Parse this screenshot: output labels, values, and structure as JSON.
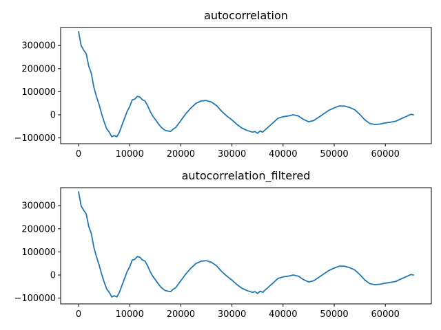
{
  "chart_data": [
    {
      "type": "line",
      "title": "autocorrelation",
      "xlabel": "",
      "ylabel": "",
      "xlim": [
        -3500,
        69000
      ],
      "ylim": [
        -125000,
        378000
      ],
      "x_ticks": [
        0,
        10000,
        20000,
        30000,
        40000,
        50000,
        60000
      ],
      "x_tick_labels": [
        "0",
        "10000",
        "20000",
        "30000",
        "40000",
        "50000",
        "60000"
      ],
      "y_ticks": [
        -100000,
        0,
        100000,
        200000,
        300000
      ],
      "y_tick_labels": [
        "−100000",
        "0",
        "100000",
        "200000",
        "300000"
      ],
      "grid": false,
      "color": "#1f77b4",
      "series": [
        {
          "x": [
            0,
            500,
            1000,
            1500,
            2000,
            2500,
            3000,
            3500,
            4000,
            4500,
            5000,
            5500,
            6000,
            6500,
            7000,
            7500,
            8000,
            8500,
            9000,
            9500,
            10000,
            10500,
            11000,
            11500,
            12000,
            12500,
            13000,
            13500,
            14000,
            14500,
            15000,
            15500,
            16000,
            16500,
            17000,
            17500,
            18000,
            18500,
            19000,
            19500,
            20000,
            21000,
            22000,
            23000,
            24000,
            25000,
            26000,
            27000,
            28000,
            29000,
            30000,
            31000,
            32000,
            33000,
            34000,
            34500,
            35000,
            35500,
            36000,
            37000,
            38000,
            39000,
            40000,
            41000,
            42000,
            43000,
            44000,
            45000,
            46000,
            47000,
            48000,
            49000,
            50000,
            51000,
            52000,
            53000,
            54000,
            55000,
            56000,
            57000,
            58000,
            59000,
            60000,
            61000,
            62000,
            63000,
            64000,
            65000,
            65500
          ],
          "y": [
            360000,
            300000,
            280000,
            265000,
            210000,
            180000,
            120000,
            80000,
            45000,
            5000,
            -30000,
            -60000,
            -75000,
            -95000,
            -90000,
            -95000,
            -75000,
            -45000,
            -15000,
            15000,
            35000,
            65000,
            68000,
            80000,
            77000,
            65000,
            60000,
            40000,
            15000,
            -5000,
            -20000,
            -35000,
            -50000,
            -60000,
            -68000,
            -70000,
            -72000,
            -62000,
            -55000,
            -40000,
            -25000,
            5000,
            30000,
            50000,
            60000,
            62000,
            55000,
            40000,
            15000,
            -5000,
            -22000,
            -42000,
            -58000,
            -68000,
            -75000,
            -72000,
            -80000,
            -70000,
            -75000,
            -55000,
            -35000,
            -15000,
            -8000,
            -5000,
            0,
            -5000,
            -20000,
            -30000,
            -25000,
            -10000,
            5000,
            20000,
            30000,
            38000,
            38000,
            32000,
            22000,
            2000,
            -22000,
            -38000,
            -42000,
            -40000,
            -35000,
            -32000,
            -28000,
            -18000,
            -8000,
            2000,
            0
          ]
        }
      ]
    },
    {
      "type": "line",
      "title": "autocorrelation_filtered",
      "xlabel": "",
      "ylabel": "",
      "xlim": [
        -3500,
        69000
      ],
      "ylim": [
        -125000,
        378000
      ],
      "x_ticks": [
        0,
        10000,
        20000,
        30000,
        40000,
        50000,
        60000
      ],
      "x_tick_labels": [
        "0",
        "10000",
        "20000",
        "30000",
        "40000",
        "50000",
        "60000"
      ],
      "y_ticks": [
        -100000,
        0,
        100000,
        200000,
        300000
      ],
      "y_tick_labels": [
        "−100000",
        "0",
        "100000",
        "200000",
        "300000"
      ],
      "grid": false,
      "color": "#1f77b4",
      "series": [
        {
          "x": [
            0,
            500,
            1000,
            1500,
            2000,
            2500,
            3000,
            3500,
            4000,
            4500,
            5000,
            5500,
            6000,
            6500,
            7000,
            7500,
            8000,
            8500,
            9000,
            9500,
            10000,
            10500,
            11000,
            11500,
            12000,
            12500,
            13000,
            13500,
            14000,
            14500,
            15000,
            15500,
            16000,
            16500,
            17000,
            17500,
            18000,
            18500,
            19000,
            19500,
            20000,
            21000,
            22000,
            23000,
            24000,
            25000,
            26000,
            27000,
            28000,
            29000,
            30000,
            31000,
            32000,
            33000,
            34000,
            34500,
            35000,
            35500,
            36000,
            37000,
            38000,
            39000,
            40000,
            41000,
            42000,
            43000,
            44000,
            45000,
            46000,
            47000,
            48000,
            49000,
            50000,
            51000,
            52000,
            53000,
            54000,
            55000,
            56000,
            57000,
            58000,
            59000,
            60000,
            61000,
            62000,
            63000,
            64000,
            65000,
            65500
          ],
          "y": [
            360000,
            300000,
            280000,
            265000,
            210000,
            180000,
            120000,
            80000,
            45000,
            5000,
            -30000,
            -60000,
            -75000,
            -95000,
            -90000,
            -95000,
            -75000,
            -45000,
            -15000,
            15000,
            35000,
            65000,
            68000,
            80000,
            77000,
            65000,
            60000,
            40000,
            15000,
            -5000,
            -20000,
            -35000,
            -50000,
            -60000,
            -68000,
            -70000,
            -72000,
            -62000,
            -55000,
            -40000,
            -25000,
            5000,
            30000,
            50000,
            60000,
            62000,
            55000,
            40000,
            15000,
            -5000,
            -22000,
            -42000,
            -58000,
            -68000,
            -75000,
            -72000,
            -80000,
            -70000,
            -75000,
            -55000,
            -35000,
            -15000,
            -8000,
            -5000,
            0,
            -5000,
            -20000,
            -30000,
            -25000,
            -10000,
            5000,
            20000,
            30000,
            38000,
            38000,
            32000,
            22000,
            2000,
            -22000,
            -38000,
            -42000,
            -40000,
            -35000,
            -32000,
            -28000,
            -18000,
            -8000,
            2000,
            0
          ]
        }
      ]
    }
  ]
}
